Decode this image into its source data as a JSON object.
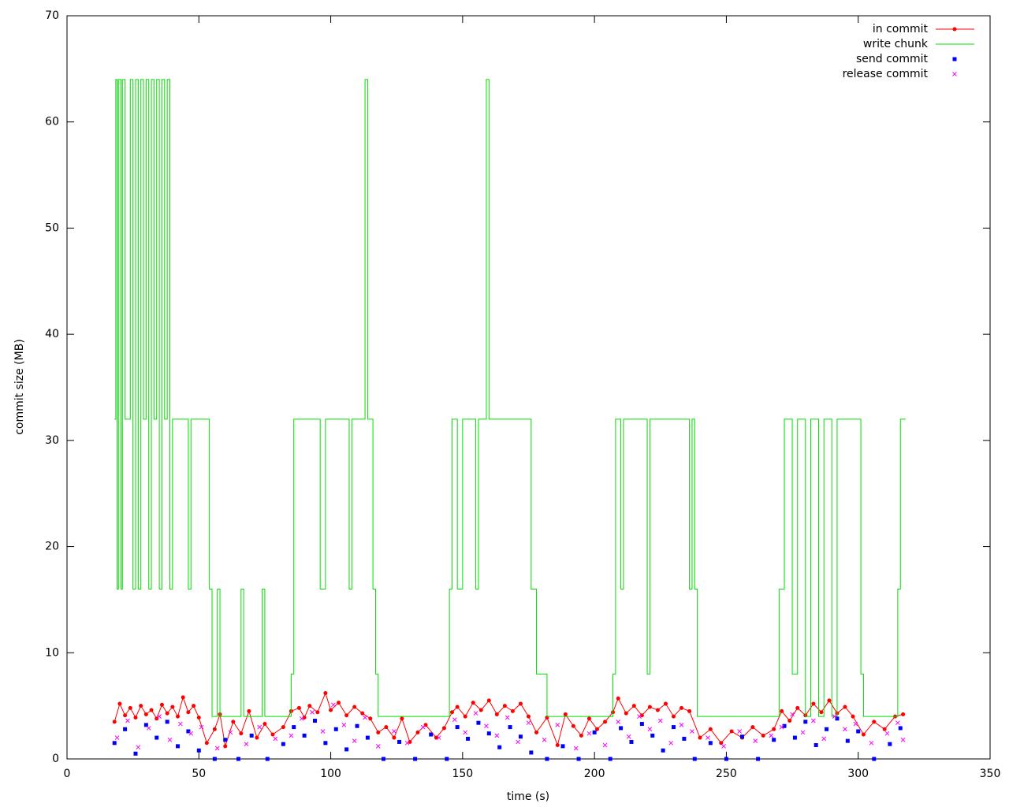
{
  "chart_data": {
    "type": "line",
    "xlabel": "time (s)",
    "ylabel": "commit size (MB)",
    "xlim": [
      0,
      350
    ],
    "xticks": [
      0,
      50,
      100,
      150,
      200,
      250,
      300,
      350
    ],
    "ylim": [
      0,
      70
    ],
    "yticks": [
      0,
      10,
      20,
      30,
      40,
      50,
      60,
      70
    ],
    "grid": false,
    "legend": "top right",
    "series": [
      {
        "name": "in commit",
        "color": "#ff0000",
        "style": "linespoints",
        "x": [
          18,
          20,
          22,
          24,
          26,
          28,
          30,
          32,
          34,
          36,
          38,
          40,
          42,
          44,
          46,
          48,
          50,
          53,
          56,
          58,
          60,
          63,
          66,
          69,
          72,
          75,
          78,
          82,
          85,
          88,
          90,
          92,
          95,
          98,
          100,
          103,
          106,
          109,
          112,
          115,
          118,
          121,
          124,
          127,
          130,
          133,
          136,
          140,
          143,
          146,
          148,
          151,
          154,
          157,
          160,
          163,
          166,
          169,
          172,
          175,
          178,
          182,
          186,
          189,
          192,
          195,
          198,
          201,
          204,
          207,
          209,
          212,
          215,
          218,
          221,
          224,
          227,
          230,
          233,
          236,
          240,
          244,
          248,
          252,
          256,
          260,
          264,
          268,
          271,
          274,
          277,
          280,
          283,
          286,
          289,
          292,
          295,
          298,
          302,
          306,
          310,
          314,
          317
        ],
        "values": [
          3.5,
          5.2,
          4.1,
          4.8,
          3.9,
          5,
          4.2,
          4.6,
          3.8,
          5.1,
          4.3,
          4.9,
          4,
          5.8,
          4.4,
          5,
          3.9,
          1.5,
          2.8,
          4.2,
          1.2,
          3.5,
          2.4,
          4.5,
          2,
          3.3,
          2.3,
          3,
          4.5,
          4.8,
          3.9,
          5,
          4.4,
          6.2,
          4.6,
          5.3,
          4.1,
          4.9,
          4.3,
          3.8,
          2.5,
          3,
          2,
          3.8,
          1.6,
          2.5,
          3.2,
          2,
          2.9,
          4.4,
          4.9,
          4,
          5.3,
          4.6,
          5.5,
          4.2,
          5,
          4.5,
          5.2,
          4,
          2.5,
          3.9,
          1.3,
          4.2,
          3.1,
          2.2,
          3.8,
          2.8,
          3.5,
          4.4,
          5.7,
          4.3,
          5,
          4.1,
          4.9,
          4.6,
          5.2,
          4,
          4.8,
          4.5,
          2,
          2.8,
          1.5,
          2.6,
          2,
          3,
          2.2,
          2.8,
          4.5,
          3.6,
          4.8,
          4.1,
          5.2,
          4.4,
          5.5,
          4.3,
          4.9,
          4,
          2.3,
          3.5,
          2.8,
          4,
          4.2
        ]
      },
      {
        "name": "write chunk",
        "color": "#00dd00",
        "style": "steps",
        "x": [
          18,
          18.5,
          19,
          19.5,
          20.5,
          21,
          22,
          24,
          25,
          26,
          27,
          28,
          29,
          30,
          31,
          32,
          33,
          34,
          35,
          36,
          37,
          38,
          39,
          40,
          46,
          47,
          54,
          55,
          57,
          58,
          66,
          67,
          74,
          75,
          85,
          86,
          96,
          98,
          107,
          108,
          113,
          114,
          116,
          117,
          118,
          145,
          146,
          148,
          150,
          155,
          156,
          159,
          160,
          176,
          178,
          182,
          207,
          208,
          210,
          211,
          220,
          221,
          236,
          237,
          238,
          239,
          270,
          272,
          275,
          277,
          280,
          282,
          285,
          287,
          290,
          292,
          301,
          302,
          315,
          316,
          318
        ],
        "values": [
          32,
          64,
          16,
          64,
          16,
          64,
          32,
          64,
          16,
          64,
          16,
          64,
          32,
          64,
          16,
          64,
          32,
          64,
          16,
          64,
          32,
          64,
          16,
          32,
          16,
          32,
          16,
          4,
          16,
          4,
          16,
          4,
          16,
          4,
          8,
          32,
          16,
          32,
          16,
          32,
          64,
          32,
          16,
          8,
          4,
          16,
          32,
          16,
          32,
          16,
          32,
          64,
          32,
          16,
          8,
          4,
          8,
          32,
          16,
          32,
          8,
          32,
          16,
          32,
          16,
          4,
          16,
          32,
          8,
          32,
          4,
          32,
          4,
          32,
          4,
          32,
          8,
          4,
          16,
          32,
          32
        ]
      },
      {
        "name": "send commit",
        "color": "#0000ff",
        "style": "squares",
        "x": [
          18,
          22,
          26,
          30,
          34,
          38,
          42,
          46,
          50,
          56,
          60,
          65,
          70,
          76,
          82,
          86,
          90,
          94,
          98,
          102,
          106,
          110,
          114,
          120,
          126,
          132,
          138,
          144,
          148,
          152,
          156,
          160,
          164,
          168,
          172,
          176,
          182,
          188,
          194,
          200,
          206,
          210,
          214,
          218,
          222,
          226,
          230,
          234,
          238,
          244,
          250,
          256,
          262,
          268,
          272,
          276,
          280,
          284,
          288,
          292,
          296,
          300,
          306,
          312,
          316
        ],
        "values": [
          1.5,
          2.8,
          0.5,
          3.2,
          2,
          3.5,
          1.2,
          2.6,
          0.8,
          0,
          1.8,
          0,
          2.2,
          0,
          1.4,
          3,
          2.2,
          3.6,
          1.5,
          2.8,
          0.9,
          3.1,
          2,
          0,
          1.6,
          0,
          2.3,
          0,
          3,
          1.9,
          3.4,
          2.4,
          1.1,
          3,
          2.1,
          0.6,
          0,
          1.2,
          0,
          2.5,
          0,
          2.9,
          1.6,
          3.3,
          2.2,
          0.8,
          3,
          1.9,
          0,
          1.5,
          0,
          2.1,
          0,
          1.8,
          3.1,
          2,
          3.5,
          1.3,
          2.8,
          3.8,
          1.7,
          2.6,
          0,
          1.4,
          2.9
        ]
      },
      {
        "name": "release commit",
        "color": "#ff00ff",
        "style": "crosses",
        "x": [
          19,
          23,
          27,
          31,
          35,
          39,
          43,
          47,
          51,
          57,
          62,
          68,
          73,
          79,
          85,
          89,
          93,
          97,
          101,
          105,
          109,
          113,
          118,
          124,
          129,
          135,
          141,
          147,
          151,
          155,
          159,
          163,
          167,
          171,
          175,
          181,
          186,
          193,
          198,
          204,
          209,
          213,
          217,
          221,
          225,
          229,
          233,
          237,
          243,
          249,
          255,
          261,
          267,
          271,
          275,
          279,
          283,
          287,
          291,
          295,
          299,
          305,
          311,
          315,
          317
        ],
        "values": [
          2,
          3.6,
          1.1,
          2.9,
          4,
          1.8,
          3.3,
          2.4,
          3,
          1,
          2.5,
          1.4,
          3,
          1.9,
          2.2,
          3.8,
          4.4,
          2.6,
          5.1,
          3.2,
          1.7,
          3.9,
          1.2,
          2.6,
          1.5,
          3,
          2,
          3.7,
          2.5,
          4.3,
          3.1,
          2.2,
          3.9,
          1.6,
          3.4,
          1.8,
          3.2,
          1,
          2.4,
          1.3,
          3.5,
          2.1,
          4,
          2.8,
          3.6,
          1.5,
          3.2,
          2.6,
          2,
          1.2,
          2.6,
          1.7,
          2.2,
          3,
          4.2,
          2.5,
          3.6,
          1.9,
          4,
          2.8,
          3.3,
          1.5,
          2.4,
          3.4,
          1.8
        ]
      }
    ]
  }
}
